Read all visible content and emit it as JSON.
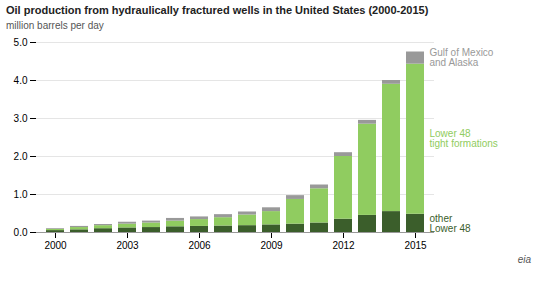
{
  "chart_data": {
    "type": "bar",
    "stacked": true,
    "title": "Oil production from hydraulically fractured wells in the United States (2000-2015)",
    "subtitle": "million barrels per day",
    "categories": [
      "2000",
      null,
      null,
      "2003",
      null,
      null,
      "2006",
      null,
      null,
      "2009",
      null,
      null,
      "2012",
      null,
      null,
      "2015"
    ],
    "series": [
      {
        "name": "other\nLower 48",
        "color": "#3b5e2b",
        "values": [
          0.05,
          0.07,
          0.1,
          0.12,
          0.13,
          0.15,
          0.16,
          0.17,
          0.18,
          0.2,
          0.22,
          0.25,
          0.35,
          0.45,
          0.55,
          0.48
        ]
      },
      {
        "name": "Lower 48\ntight formations",
        "color": "#90cc60",
        "values": [
          0.03,
          0.06,
          0.08,
          0.1,
          0.12,
          0.15,
          0.18,
          0.22,
          0.28,
          0.35,
          0.65,
          0.9,
          1.65,
          2.4,
          3.35,
          3.95
        ]
      },
      {
        "name": "Gulf of Mexico\nand Alaska",
        "color": "#999999",
        "values": [
          0.02,
          0.03,
          0.03,
          0.05,
          0.05,
          0.07,
          0.07,
          0.08,
          0.08,
          0.1,
          0.1,
          0.1,
          0.1,
          0.1,
          0.1,
          0.32
        ]
      }
    ],
    "ylim": [
      0,
      5
    ],
    "yticks": [
      0,
      1,
      2,
      3,
      4,
      5
    ],
    "grid": true,
    "annotations": [
      "eia"
    ]
  }
}
